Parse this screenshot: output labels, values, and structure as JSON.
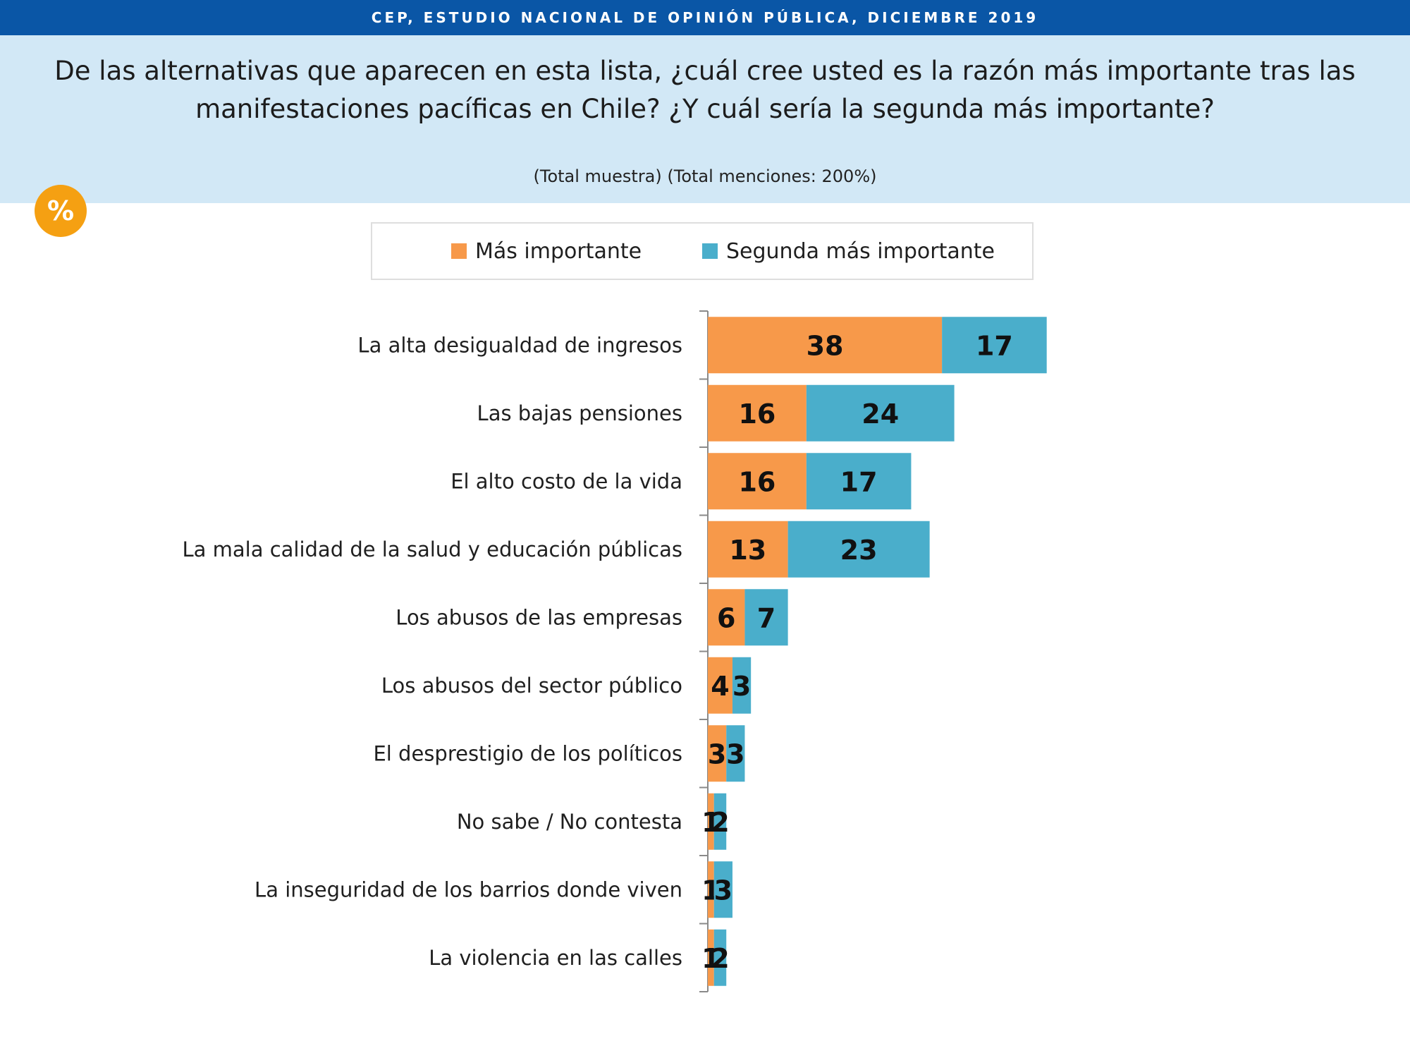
{
  "banner": {
    "title": "CEP, ESTUDIO NACIONAL DE OPINIÓN PÚBLICA, DICIEMBRE 2019"
  },
  "header": {
    "question_line1": "De las alternativas que aparecen en esta lista, ¿cuál cree usted es la razón más importante tras las",
    "question_line2": "manifestaciones pacíficas en Chile? ¿Y cuál sería la segunda más importante?",
    "sample_note": "(Total muestra) (Total menciones: 200%)"
  },
  "badge": {
    "symbol": "%"
  },
  "colors": {
    "banner": "#0a56a6",
    "header_bg": "#d2e8f6",
    "badge": "#f5a012",
    "series_primary": "#f7994a",
    "series_secondary": "#4aaecb"
  },
  "chart_data": {
    "type": "bar",
    "orientation": "horizontal",
    "stacked": true,
    "legend_position": "top",
    "grid": false,
    "xlim": [
      0,
      60
    ],
    "categories": [
      "La alta desigualdad de ingresos",
      "Las bajas pensiones",
      "El alto costo de la vida",
      "La mala calidad de la salud y educación públicas",
      "Los abusos de las empresas",
      "Los abusos del sector público",
      "El desprestigio de los políticos",
      "No sabe / No contesta",
      "La inseguridad de los barrios donde viven",
      "La violencia en las calles"
    ],
    "series": [
      {
        "name": "Más importante",
        "color": "#f7994a",
        "values": [
          38,
          16,
          16,
          13,
          6,
          4,
          3,
          1,
          1,
          1
        ]
      },
      {
        "name": "Segunda más importante",
        "color": "#4aaecb",
        "values": [
          17,
          24,
          17,
          23,
          7,
          3,
          3,
          2,
          3,
          2
        ]
      }
    ]
  }
}
